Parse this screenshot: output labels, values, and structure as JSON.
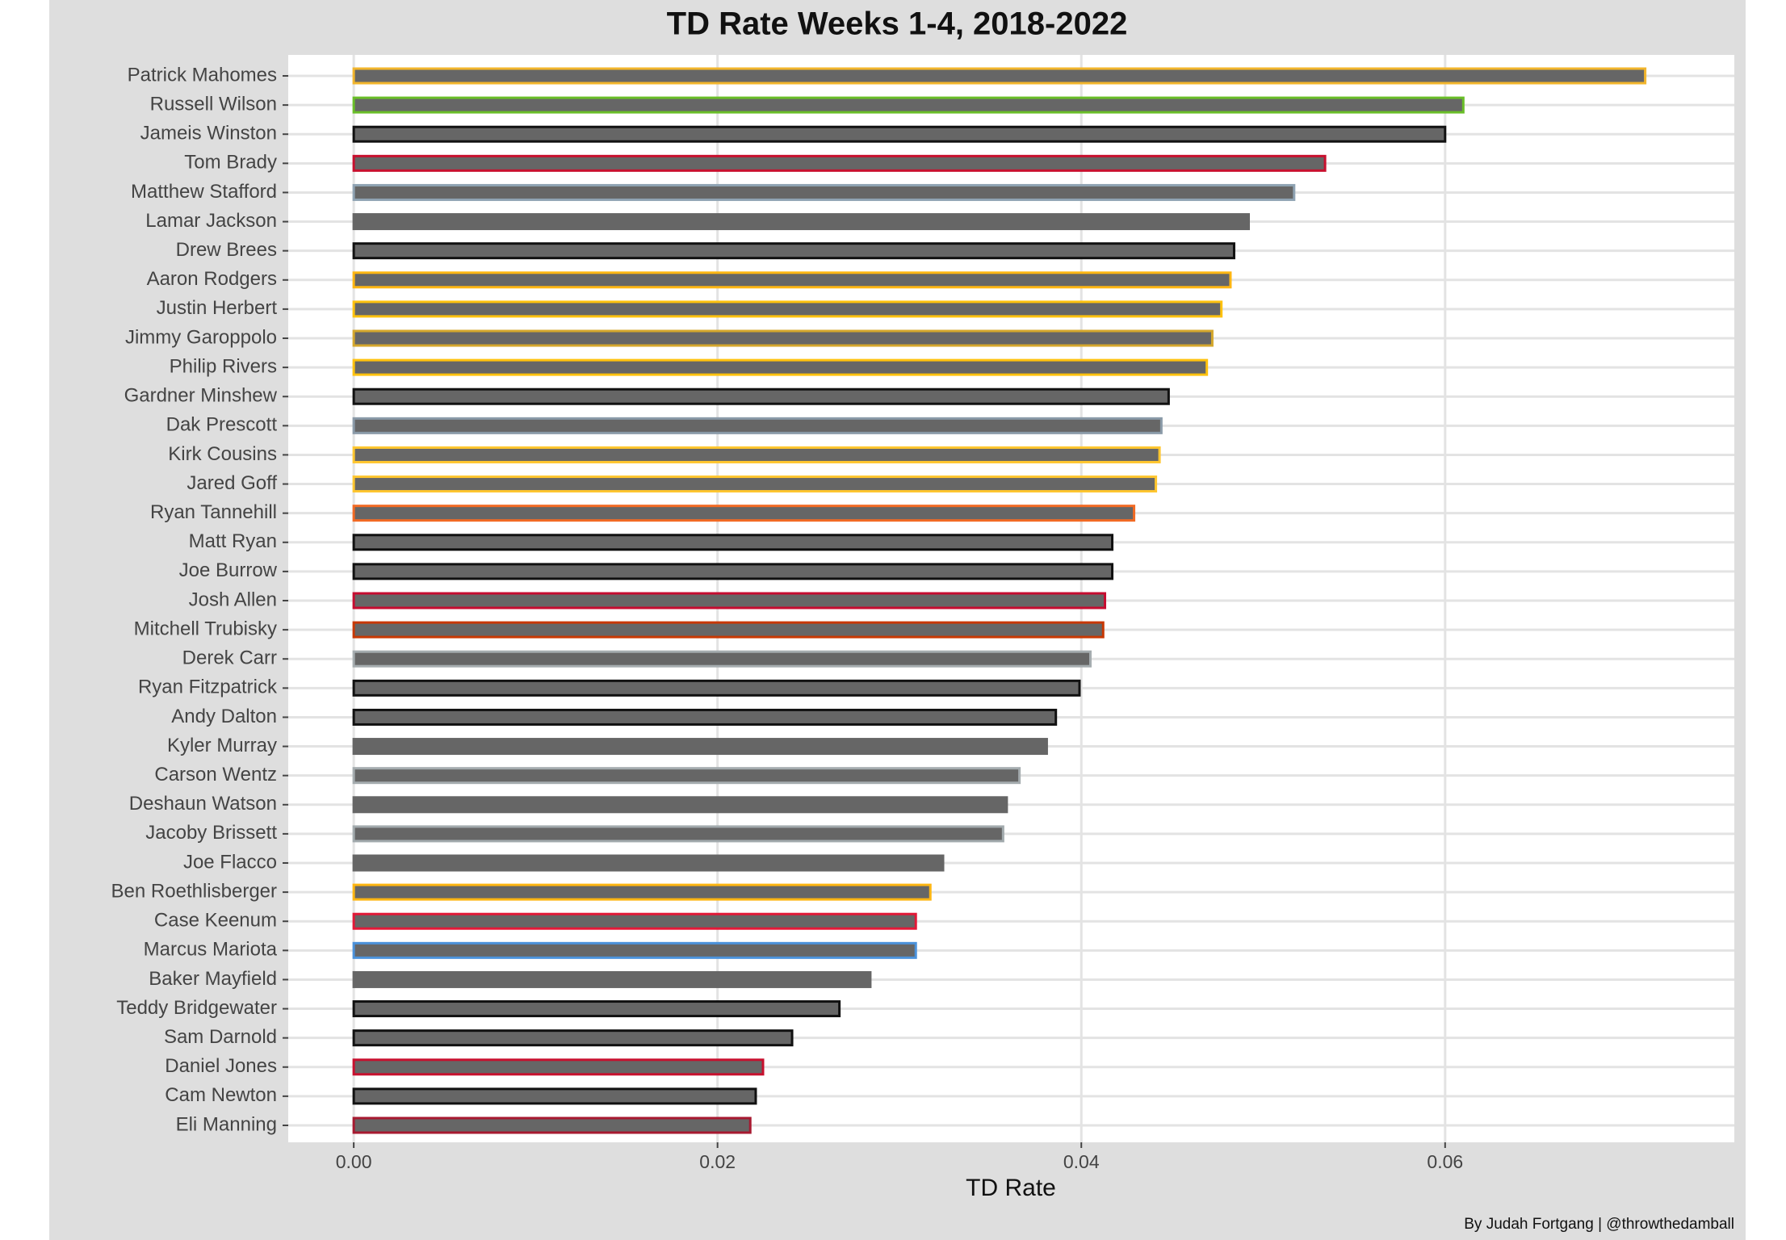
{
  "chart_data": {
    "type": "bar",
    "orientation": "horizontal",
    "title": "TD Rate Weeks 1-4, 2018-2022",
    "x_label": "TD Rate",
    "caption": "By Judah Fortgang | @throwthedamball",
    "categories": [
      "Patrick Mahomes",
      "Russell Wilson",
      "Jameis Winston",
      "Tom Brady",
      "Matthew Stafford",
      "Lamar Jackson",
      "Drew Brees",
      "Aaron Rodgers",
      "Justin Herbert",
      "Jimmy Garoppolo",
      "Philip Rivers",
      "Gardner Minshew",
      "Dak Prescott",
      "Kirk Cousins",
      "Jared Goff",
      "Ryan Tannehill",
      "Matt Ryan",
      "Joe Burrow",
      "Josh Allen",
      "Mitchell Trubisky",
      "Derek Carr",
      "Ryan Fitzpatrick",
      "Andy Dalton",
      "Kyler Murray",
      "Carson Wentz",
      "Deshaun Watson",
      "Jacoby Brissett",
      "Joe Flacco",
      "Ben Roethlisberger",
      "Case Keenum",
      "Marcus Mariota",
      "Baker Mayfield",
      "Teddy Bridgewater",
      "Sam Darnold",
      "Daniel Jones",
      "Cam Newton",
      "Eli Manning"
    ],
    "values": [
      0.071,
      0.061,
      0.06,
      0.0534,
      0.0517,
      0.0492,
      0.0484,
      0.0482,
      0.0477,
      0.0472,
      0.0469,
      0.0448,
      0.0444,
      0.0443,
      0.0441,
      0.0429,
      0.0417,
      0.0417,
      0.0413,
      0.0412,
      0.0405,
      0.0399,
      0.0386,
      0.0381,
      0.0366,
      0.0359,
      0.0357,
      0.0324,
      0.0317,
      0.0309,
      0.0309,
      0.0284,
      0.0267,
      0.0241,
      0.0225,
      0.0221,
      0.0218
    ],
    "color": "#666666",
    "outline_colors": [
      "#f2b52c",
      "#69be28",
      "#111111",
      "#c8102e",
      "#8fa3b3",
      "#666666",
      "#111111",
      "#ffb612",
      "#ffc20e",
      "#d4a72c",
      "#ffc20e",
      "#111111",
      "#8a9aa8",
      "#ffc62f",
      "#ffc62f",
      "#f26a24",
      "#111111",
      "#111111",
      "#c60c30",
      "#c83803",
      "#a5acaf",
      "#111111",
      "#111111",
      "#666666",
      "#a5acaf",
      "#666666",
      "#a2aaad",
      "#666666",
      "#ffb612",
      "#e31837",
      "#4b92db",
      "#666666",
      "#111111",
      "#111111",
      "#c8102e",
      "#111111",
      "#a71930"
    ],
    "xlim": [
      -0.0036,
      0.0759
    ],
    "xticks": [
      {
        "value": 0,
        "label": "0.00"
      },
      {
        "value": 0.02,
        "label": "0.02"
      },
      {
        "value": 0.04,
        "label": "0.04"
      },
      {
        "value": 0.06,
        "label": "0.06"
      }
    ],
    "grid": true
  }
}
